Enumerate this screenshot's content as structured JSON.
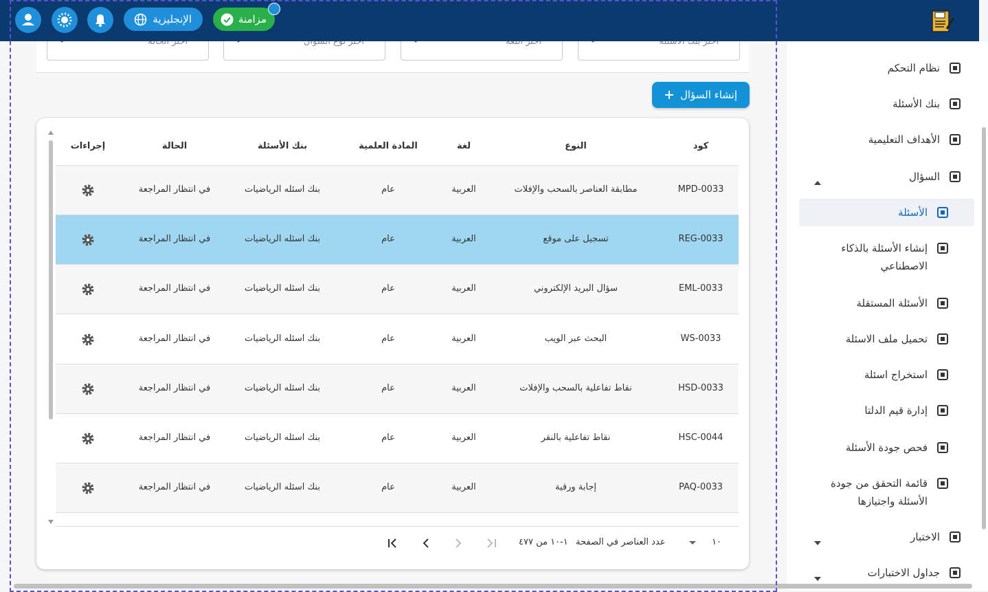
{
  "header": {
    "sync": "مزامنة",
    "language": "الإنجليزية"
  },
  "filters": [
    "اختر بنك الأسئلة",
    "اختر اللغة",
    "اختر نوع السؤال",
    "اختر الحالة"
  ],
  "create_button": "إنشاء السؤال",
  "table": {
    "columns": [
      "كود",
      "النوع",
      "لغة",
      "المادة العلمية",
      "بنك الأسئلة",
      "الحالة",
      "إجراءات"
    ],
    "rows": [
      [
        "MPD-0033",
        "مطابقة العناصر بالسحب والإفلات",
        "العربية",
        "عام",
        "بنك اسئله الرياضيات",
        "في انتظار المراجعة"
      ],
      [
        "REG-0033",
        "تسجيل على موقع",
        "العربية",
        "عام",
        "بنك اسئله الرياضيات",
        "في انتظار المراجعة"
      ],
      [
        "EML-0033",
        "سؤال البريد الإلكتروني",
        "العربية",
        "عام",
        "بنك اسئله الرياضيات",
        "في انتظار المراجعة"
      ],
      [
        "WS-0033",
        "البحث عبر الويب",
        "العربية",
        "عام",
        "بنك اسئله الرياضيات",
        "في انتظار المراجعة"
      ],
      [
        "HSD-0033",
        "نقاط تفاعلية بالسحب والإفلات",
        "العربية",
        "عام",
        "بنك اسئله الرياضيات",
        "في انتظار المراجعة"
      ],
      [
        "HSC-0044",
        "نقاط تفاعلية بالنقر",
        "العربية",
        "عام",
        "بنك اسئله الرياضيات",
        "في انتظار المراجعة"
      ],
      [
        "PAQ-0033",
        "إجابة ورقية",
        "العربية",
        "عام",
        "بنك اسئله الرياضيات",
        "في انتظار المراجعة"
      ]
    ]
  },
  "pagination": {
    "page_size": "١٠",
    "page_size_label": "عدد العناصر في الصفحة",
    "range": "١-١٠ من ٤٧٧"
  },
  "sidebar": [
    "نظام التحكم",
    "بنك الأسئلة",
    "الأهداف التعليمية",
    "السؤال",
    "الأسئلة",
    "إنشاء الأسئلة بالذكاء الاصطناعي",
    "الأسئلة المستقلة",
    "تحميل ملف الاسئلة",
    "استخراج اسئلة",
    "إدارة قيم الدلتا",
    "فحص جودة الأسئلة",
    "قائمة التحقق من جودة الأسئلة واجتيازها",
    "الاختبار",
    "جداول الاختبارات"
  ]
}
